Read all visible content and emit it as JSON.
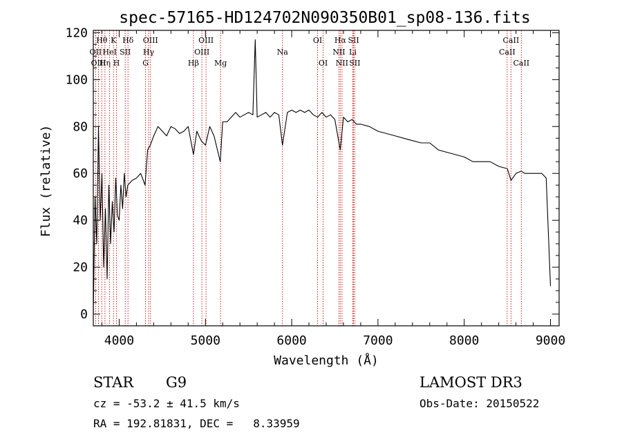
{
  "chart_data": {
    "type": "line",
    "title": "spec-57165-HD124702N090350B01_sp08-136.fits",
    "xlabel": "Wavelength (Å)",
    "ylabel": "Flux (relative)",
    "xlim": [
      3700,
      9100
    ],
    "ylim": [
      -5,
      121
    ],
    "xticks": [
      4000,
      5000,
      6000,
      7000,
      8000,
      9000
    ],
    "xtick_labels": [
      "4000",
      "5000",
      "6000",
      "7000",
      "8000",
      "9000"
    ],
    "yticks": [
      0,
      20,
      40,
      60,
      80,
      100,
      120
    ],
    "ytick_labels": [
      "0",
      "20",
      "40",
      "60",
      "80",
      "100",
      "120"
    ],
    "grid": false,
    "series": [
      {
        "name": "spectrum",
        "x": [
          3700,
          3720,
          3740,
          3760,
          3780,
          3800,
          3820,
          3840,
          3860,
          3880,
          3900,
          3920,
          3940,
          3960,
          3980,
          4000,
          4020,
          4040,
          4060,
          4080,
          4100,
          4150,
          4200,
          4250,
          4300,
          4330,
          4360,
          4400,
          4450,
          4500,
          4550,
          4600,
          4650,
          4700,
          4750,
          4800,
          4861,
          4900,
          4950,
          5000,
          5050,
          5100,
          5172,
          5200,
          5250,
          5300,
          5350,
          5400,
          5450,
          5500,
          5550,
          5577,
          5600,
          5650,
          5700,
          5750,
          5800,
          5850,
          5893,
          5950,
          6000,
          6050,
          6100,
          6150,
          6200,
          6250,
          6300,
          6350,
          6400,
          6450,
          6500,
          6563,
          6600,
          6650,
          6700,
          6750,
          6800,
          6900,
          7000,
          7100,
          7200,
          7300,
          7400,
          7500,
          7600,
          7700,
          7800,
          7900,
          8000,
          8100,
          8200,
          8300,
          8400,
          8500,
          8542,
          8600,
          8662,
          8700,
          8800,
          8900,
          8950,
          9000
        ],
        "y": [
          0,
          50,
          30,
          80,
          40,
          60,
          20,
          45,
          15,
          55,
          30,
          48,
          35,
          58,
          42,
          40,
          55,
          45,
          60,
          50,
          55,
          57,
          58,
          60,
          55,
          70,
          72,
          76,
          80,
          78,
          76,
          80,
          79,
          77,
          78,
          80,
          68,
          78,
          74,
          72,
          80,
          76,
          65,
          82,
          82,
          84,
          86,
          84,
          85,
          86,
          85,
          117,
          84,
          85,
          86,
          84,
          86,
          85,
          72,
          86,
          87,
          86,
          87,
          86,
          87,
          85,
          84,
          86,
          84,
          85,
          83,
          70,
          84,
          82,
          83,
          81,
          81,
          80,
          78,
          77,
          76,
          75,
          74,
          73,
          73,
          70,
          69,
          68,
          67,
          65,
          65,
          65,
          63,
          62,
          57,
          60,
          61,
          60,
          60,
          60,
          58,
          12
        ]
      }
    ],
    "line_markers": [
      {
        "label": "Hθ",
        "x": 3798,
        "row": 1
      },
      {
        "label": "OII",
        "x": 3727,
        "row": 2
      },
      {
        "label": "OIII",
        "x": 3760,
        "row": 3
      },
      {
        "label": "Hη",
        "x": 3835,
        "row": 3
      },
      {
        "label": "HeI",
        "x": 3889,
        "row": 2
      },
      {
        "label": "K",
        "x": 3934,
        "row": 1
      },
      {
        "label": "H",
        "x": 3969,
        "row": 3
      },
      {
        "label": "SII",
        "x": 4070,
        "row": 2
      },
      {
        "label": "Hδ",
        "x": 4102,
        "row": 1
      },
      {
        "label": "OIII",
        "x": 4363,
        "row": 1
      },
      {
        "label": "Hγ",
        "x": 4341,
        "row": 2
      },
      {
        "label": "G",
        "x": 4305,
        "row": 3
      },
      {
        "label": "Hβ",
        "x": 4861,
        "row": 3
      },
      {
        "label": "OIII",
        "x": 4959,
        "row": 2
      },
      {
        "label": "OIII",
        "x": 5007,
        "row": 1
      },
      {
        "label": "Mg",
        "x": 5175,
        "row": 3
      },
      {
        "label": "Na",
        "x": 5893,
        "row": 2
      },
      {
        "label": "OI",
        "x": 6300,
        "row": 1
      },
      {
        "label": "OI",
        "x": 6364,
        "row": 3
      },
      {
        "label": "Hα",
        "x": 6563,
        "row": 1
      },
      {
        "label": "NII",
        "x": 6548,
        "row": 2
      },
      {
        "label": "NII",
        "x": 6583,
        "row": 3
      },
      {
        "label": "SII",
        "x": 6717,
        "row": 1
      },
      {
        "label": "Li",
        "x": 6708,
        "row": 2
      },
      {
        "label": "SII",
        "x": 6731,
        "row": 3
      },
      {
        "label": "CaII",
        "x": 8542,
        "row": 1
      },
      {
        "label": "CaII",
        "x": 8498,
        "row": 2
      },
      {
        "label": "CaII",
        "x": 8662,
        "row": 3
      }
    ]
  },
  "info": {
    "class_label": "STAR",
    "subclass": "G9",
    "survey": "LAMOST DR3",
    "redshift_text": "cz = -53.2 ± 41.5 km/s",
    "obs_date_text": "Obs-Date: 20150522",
    "coords_text": "RA = 192.81831, DEC =   8.33959"
  },
  "colors": {
    "spectrum": "#000000",
    "marker": "#cc0000",
    "axes": "#000000"
  }
}
